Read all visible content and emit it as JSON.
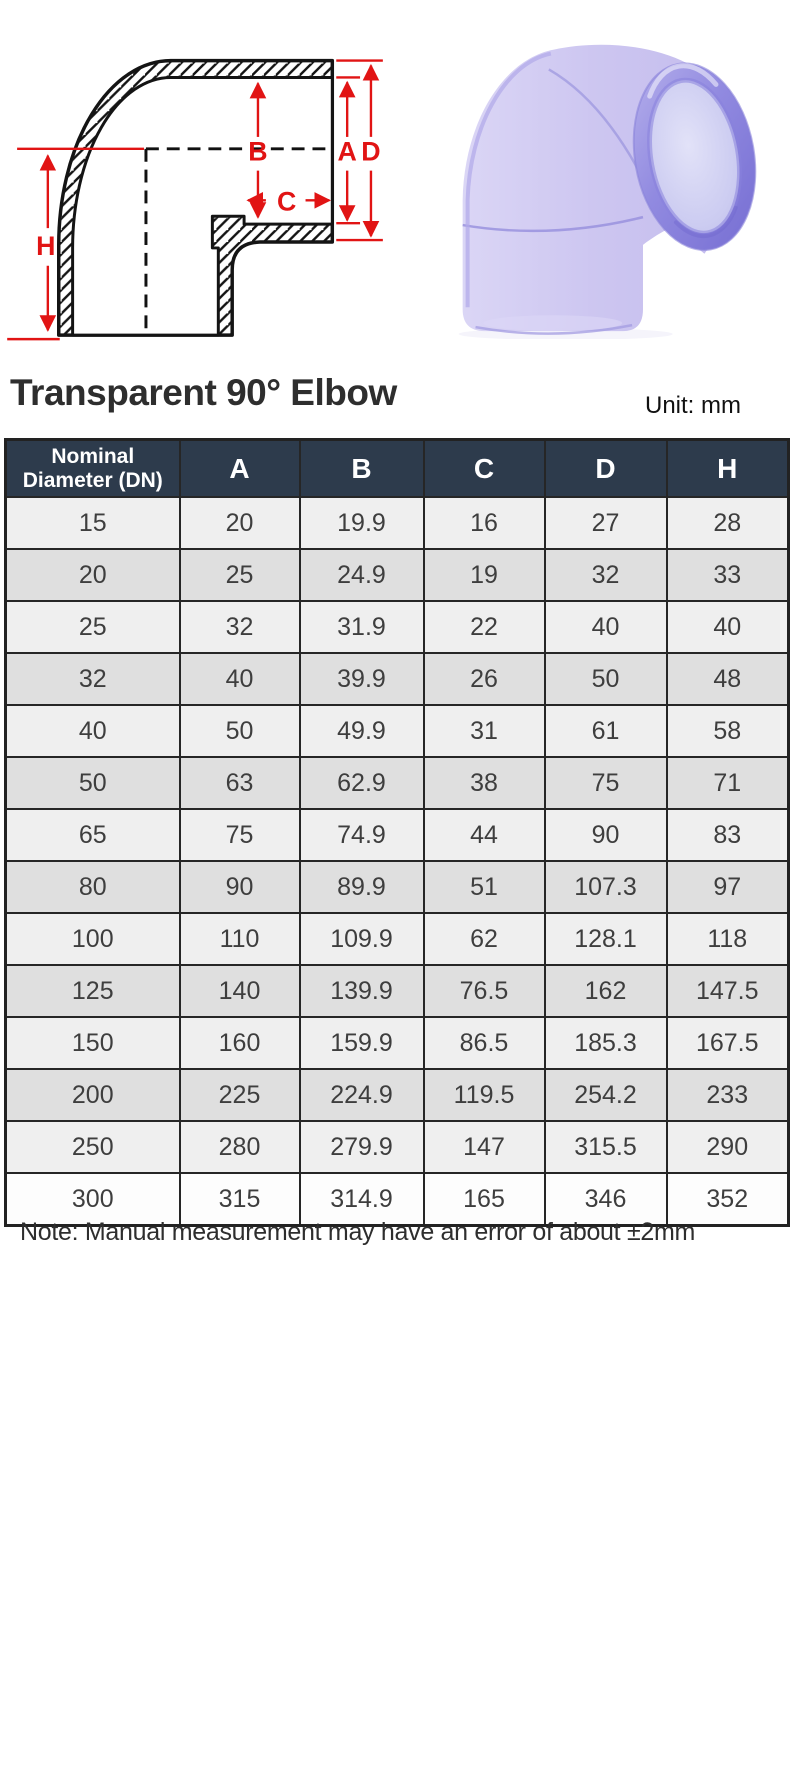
{
  "page": {
    "title": "Transparent 90° Elbow",
    "unit_label": "Unit: mm",
    "note": "Note: Manual measurement may have an error of about ±2mm"
  },
  "colors": {
    "dimension_accent": "#e11414",
    "table_header_bg": "#2d3b4c",
    "row_light": "#efefef",
    "row_dark": "#dfdfdf",
    "last_row": "#fdfdfd",
    "product_purple": "#9992e2"
  },
  "diagram": {
    "dimension_labels": {
      "A": "A",
      "B": "B",
      "C": "C",
      "D": "D",
      "H": "H"
    }
  },
  "table": {
    "columns": [
      "Nominal Diameter (DN)",
      "A",
      "B",
      "C",
      "D",
      "H"
    ],
    "rows": [
      [
        "15",
        "20",
        "19.9",
        "16",
        "27",
        "28"
      ],
      [
        "20",
        "25",
        "24.9",
        "19",
        "32",
        "33"
      ],
      [
        "25",
        "32",
        "31.9",
        "22",
        "40",
        "40"
      ],
      [
        "32",
        "40",
        "39.9",
        "26",
        "50",
        "48"
      ],
      [
        "40",
        "50",
        "49.9",
        "31",
        "61",
        "58"
      ],
      [
        "50",
        "63",
        "62.9",
        "38",
        "75",
        "71"
      ],
      [
        "65",
        "75",
        "74.9",
        "44",
        "90",
        "83"
      ],
      [
        "80",
        "90",
        "89.9",
        "51",
        "107.3",
        "97"
      ],
      [
        "100",
        "110",
        "109.9",
        "62",
        "128.1",
        "118"
      ],
      [
        "125",
        "140",
        "139.9",
        "76.5",
        "162",
        "147.5"
      ],
      [
        "150",
        "160",
        "159.9",
        "86.5",
        "185.3",
        "167.5"
      ],
      [
        "200",
        "225",
        "224.9",
        "119.5",
        "254.2",
        "233"
      ],
      [
        "250",
        "280",
        "279.9",
        "147",
        "315.5",
        "290"
      ],
      [
        "300",
        "315",
        "314.9",
        "165",
        "346",
        "352"
      ]
    ]
  }
}
